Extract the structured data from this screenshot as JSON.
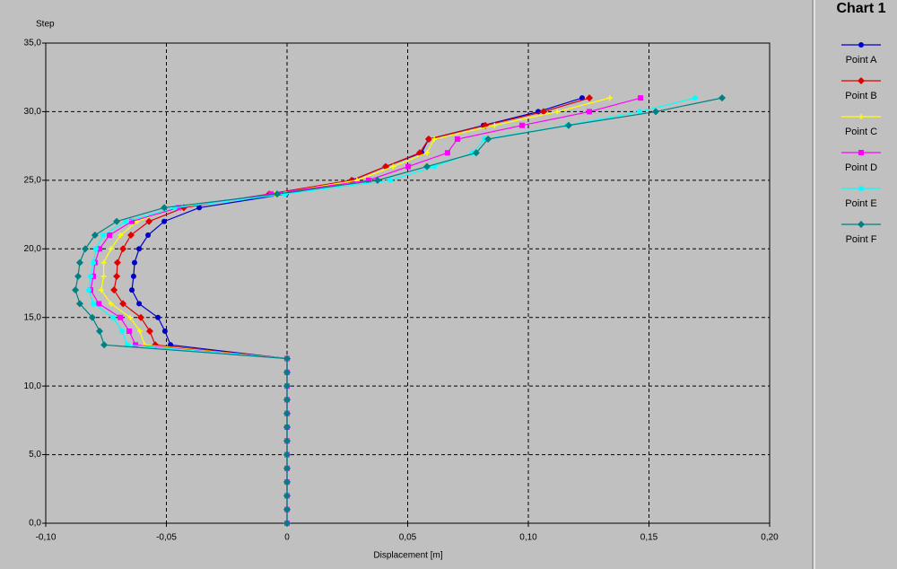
{
  "chart_data": {
    "type": "line",
    "title": "Chart 1",
    "x_label": "Displacement [m]",
    "y_label": "Step",
    "xlim": [
      -0.1,
      0.2
    ],
    "ylim": [
      0,
      35
    ],
    "grid": true,
    "legend": "right",
    "xticks": [
      {
        "value": -0.1,
        "label": "-0,10"
      },
      {
        "value": -0.05,
        "label": "-0,05"
      },
      0,
      {
        "value": 0.05,
        "label": "0,05"
      },
      {
        "value": 0.1,
        "label": "0,10"
      },
      {
        "value": 0.15,
        "label": "0,15"
      },
      {
        "value": 0.2,
        "label": "0,20"
      }
    ],
    "yticks": [
      {
        "value": 0,
        "label": "0,0"
      },
      {
        "value": 5,
        "label": "5,0"
      },
      {
        "value": 10,
        "label": "10,0"
      },
      {
        "value": 15,
        "label": "15,0"
      },
      {
        "value": 20,
        "label": "20,0"
      },
      {
        "value": 25,
        "label": "25,0"
      },
      {
        "value": 30,
        "label": "30,0"
      },
      {
        "value": 35,
        "label": "35,0"
      }
    ],
    "series": [
      {
        "name": "Point A",
        "color": "#0000c8",
        "marker": "circle",
        "x": [
          0,
          0,
          0,
          0,
          0,
          0,
          0,
          0,
          0,
          0,
          0,
          0,
          0,
          -0.0483,
          -0.0506,
          -0.0535,
          -0.0613,
          -0.0643,
          -0.0636,
          -0.0632,
          -0.0613,
          -0.0576,
          -0.0509,
          -0.0364,
          -0.0004,
          0.0271,
          0.0409,
          0.0558,
          0.0587,
          0.0814,
          0.1041,
          0.1223
        ],
        "values": [
          0,
          1,
          2,
          3,
          4,
          5,
          6,
          7,
          8,
          9,
          10,
          11,
          12,
          13,
          14,
          15,
          16,
          17,
          18,
          19,
          20,
          21,
          22,
          23,
          24,
          25,
          26,
          27,
          28,
          29,
          30,
          31
        ]
      },
      {
        "name": "Point B",
        "color": "#e00000",
        "marker": "diamond",
        "x": [
          0,
          0,
          0,
          0,
          0,
          0,
          0,
          0,
          0,
          0,
          0,
          0,
          0,
          -0.0546,
          -0.0569,
          -0.0606,
          -0.068,
          -0.0717,
          -0.0706,
          -0.0703,
          -0.068,
          -0.0647,
          -0.0572,
          -0.0428,
          -0.0074,
          0.0268,
          0.0409,
          0.055,
          0.0587,
          0.0822,
          0.1063,
          0.1253
        ],
        "values": [
          0,
          1,
          2,
          3,
          4,
          5,
          6,
          7,
          8,
          9,
          10,
          11,
          12,
          13,
          14,
          15,
          16,
          17,
          18,
          19,
          20,
          21,
          22,
          23,
          24,
          25,
          26,
          27,
          28,
          29,
          30,
          31
        ]
      },
      {
        "name": "Point C",
        "color": "#ffff00",
        "marker": "plus",
        "x": [
          0,
          0,
          0,
          0,
          0,
          0,
          0,
          0,
          0,
          0,
          0,
          0,
          0,
          -0.059,
          -0.061,
          -0.065,
          -0.073,
          -0.077,
          -0.076,
          -0.076,
          -0.073,
          -0.069,
          -0.062,
          -0.047,
          -0.005,
          0.029,
          0.044,
          0.058,
          0.061,
          0.086,
          0.112,
          0.1338
        ],
        "values": [
          0,
          1,
          2,
          3,
          4,
          5,
          6,
          7,
          8,
          9,
          10,
          11,
          12,
          13,
          14,
          15,
          16,
          17,
          18,
          19,
          20,
          21,
          22,
          23,
          24,
          25,
          26,
          27,
          28,
          29,
          30,
          31
        ]
      },
      {
        "name": "Point D",
        "color": "#ff00ff",
        "marker": "square",
        "x": [
          0,
          0,
          0,
          0,
          0,
          0,
          0,
          0,
          0,
          0,
          0,
          0,
          0,
          -0.0628,
          -0.0654,
          -0.0691,
          -0.078,
          -0.0814,
          -0.0803,
          -0.0796,
          -0.0777,
          -0.0736,
          -0.0643,
          -0.045,
          -0.0067,
          0.0338,
          0.0502,
          0.0665,
          0.0706,
          0.0974,
          0.1253,
          0.1465
        ],
        "values": [
          0,
          1,
          2,
          3,
          4,
          5,
          6,
          7,
          8,
          9,
          10,
          11,
          12,
          13,
          14,
          15,
          16,
          17,
          18,
          19,
          20,
          21,
          22,
          23,
          24,
          25,
          26,
          27,
          28,
          29,
          30,
          31
        ]
      },
      {
        "name": "Point E",
        "color": "#00ffff",
        "marker": "circle",
        "x": [
          0,
          0,
          0,
          0,
          0,
          0,
          0,
          0,
          0,
          0,
          0,
          0,
          0,
          -0.0662,
          -0.0684,
          -0.0721,
          -0.0803,
          -0.0822,
          -0.0814,
          -0.0803,
          -0.0792,
          -0.0762,
          -0.0669,
          -0.0465,
          -0.0007,
          0.0428,
          0.061,
          0.077,
          0.0818,
          0.116,
          0.1461,
          0.1691
        ],
        "values": [
          0,
          1,
          2,
          3,
          4,
          5,
          6,
          7,
          8,
          9,
          10,
          11,
          12,
          13,
          14,
          15,
          16,
          17,
          18,
          19,
          20,
          21,
          22,
          23,
          24,
          25,
          26,
          27,
          28,
          29,
          30,
          31
        ]
      },
      {
        "name": "Point F",
        "color": "#008080",
        "marker": "diamond",
        "x": [
          0,
          0,
          0,
          0,
          0,
          0,
          0,
          0,
          0,
          0,
          0,
          0,
          0,
          -0.0758,
          -0.0777,
          -0.0807,
          -0.0859,
          -0.0877,
          -0.0866,
          -0.0859,
          -0.0836,
          -0.0796,
          -0.0706,
          -0.0509,
          -0.0041,
          0.0375,
          0.058,
          0.0784,
          0.0833,
          0.1167,
          0.1528,
          0.1803
        ],
        "values": [
          0,
          1,
          2,
          3,
          4,
          5,
          6,
          7,
          8,
          9,
          10,
          11,
          12,
          13,
          14,
          15,
          16,
          17,
          18,
          19,
          20,
          21,
          22,
          23,
          24,
          25,
          26,
          27,
          28,
          29,
          30,
          31
        ]
      }
    ]
  }
}
